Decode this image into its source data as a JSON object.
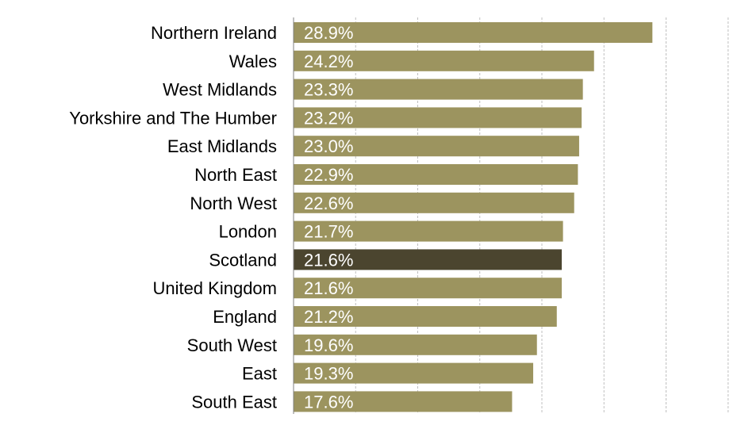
{
  "chart_data": {
    "type": "bar",
    "orientation": "horizontal",
    "categories": [
      "Northern Ireland",
      "Wales",
      "West Midlands",
      "Yorkshire and The Humber",
      "East Midlands",
      "North East",
      "North West",
      "London",
      "Scotland",
      "United Kingdom",
      "England",
      "South West",
      "East",
      "South East"
    ],
    "values": [
      28.9,
      24.2,
      23.3,
      23.2,
      23.0,
      22.9,
      22.6,
      21.7,
      21.6,
      21.6,
      21.2,
      19.6,
      19.3,
      17.6
    ],
    "value_labels": [
      "28.9%",
      "24.2%",
      "23.3%",
      "23.2%",
      "23.0%",
      "22.9%",
      "22.6%",
      "21.7%",
      "21.6%",
      "21.6%",
      "21.2%",
      "19.6%",
      "19.3%",
      "17.6%"
    ],
    "highlight_category": "Scotland",
    "xlim": [
      0,
      35
    ],
    "x_gridlines": [
      5,
      10,
      15,
      20,
      25,
      30,
      35
    ],
    "grid": true,
    "colors": {
      "bar": "#9c945f",
      "highlight": "#4b452f",
      "grid": "#bfbfbf",
      "axis": "#7f7f7f"
    },
    "title": "",
    "xlabel": "",
    "ylabel": ""
  }
}
